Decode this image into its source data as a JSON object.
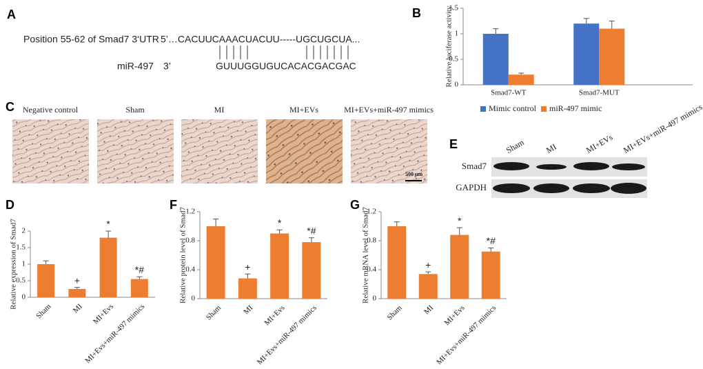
{
  "panel_a": {
    "label": "A",
    "target_label": "Position 55-62 of Smad7 3‘UTR",
    "target_seq": "5’…CACUUCAAACUACUU-----UGCUGCUA...",
    "mirna_label": "miR-497",
    "mirna_end": "3’",
    "mirna_seq": "GUUUGGUGUCACACGACGAC"
  },
  "panel_c": {
    "label": "C",
    "micrographs": [
      "Negative control",
      "Sham",
      "MI",
      "MI+EVs",
      "MI+EVs+miR-497 mimics"
    ],
    "scale_bar": "500 μm"
  },
  "panel_e": {
    "label": "E",
    "lanes": [
      "Sham",
      "MI",
      "MI+EVs",
      "MI+EVs+miR-497 mimics"
    ],
    "rows": [
      "Smad7",
      "GAPDH"
    ]
  },
  "chart_data": [
    {
      "type": "bar",
      "panel": "B",
      "ylabel": "Relative luciferase activity",
      "categories": [
        "Smad7-WT",
        "Smad7-MUT"
      ],
      "series": [
        {
          "name": "Mimic control",
          "color": "#4472c4",
          "values": [
            1.0,
            1.2
          ],
          "errors": [
            0.1,
            0.1
          ]
        },
        {
          "name": "miR-497 mimic",
          "color": "#ed7d31",
          "values": [
            0.2,
            1.1
          ],
          "errors": [
            0.03,
            0.15
          ]
        }
      ],
      "ylim": [
        0,
        1.5
      ],
      "yticks": [
        0,
        0.5,
        1,
        1.5
      ]
    },
    {
      "type": "bar",
      "panel": "D",
      "ylabel": "Relative expression of Smad7",
      "categories": [
        "Sham",
        "MI",
        "MI+Evs",
        "MI+Evs+miR-497 mimics"
      ],
      "values": [
        1.0,
        0.25,
        1.8,
        0.55
      ],
      "errors": [
        0.1,
        0.05,
        0.2,
        0.07
      ],
      "color": "#ed7d31",
      "ylim": [
        0,
        2
      ],
      "yticks": [
        0,
        0.5,
        1,
        1.5,
        2
      ],
      "annotations": [
        {
          "index": 1,
          "text": "+"
        },
        {
          "index": 2,
          "text": "*"
        },
        {
          "index": 3,
          "text": "*#"
        }
      ]
    },
    {
      "type": "bar",
      "panel": "F",
      "ylabel": "Relative protein level of Smad7",
      "categories": [
        "Sham",
        "MI",
        "MI+Evs",
        "MI+Evs+miR-497 mimics"
      ],
      "values": [
        1.0,
        0.28,
        0.9,
        0.78
      ],
      "errors": [
        0.1,
        0.06,
        0.05,
        0.06
      ],
      "color": "#ed7d31",
      "ylim": [
        0,
        1.2
      ],
      "yticks": [
        0,
        0.4,
        0.8,
        1.2
      ],
      "annotations": [
        {
          "index": 1,
          "text": "+"
        },
        {
          "index": 2,
          "text": "*"
        },
        {
          "index": 3,
          "text": "*#"
        }
      ]
    },
    {
      "type": "bar",
      "panel": "G",
      "ylabel": "Relative mRNA level of Smad7",
      "categories": [
        "Sham",
        "MI",
        "MI+Evs",
        "MI+Evs+miR-497 mimics"
      ],
      "values": [
        1.0,
        0.34,
        0.88,
        0.65
      ],
      "errors": [
        0.06,
        0.03,
        0.1,
        0.05
      ],
      "color": "#ed7d31",
      "ylim": [
        0,
        1.2
      ],
      "yticks": [
        0,
        0.4,
        0.8,
        1.2
      ],
      "annotations": [
        {
          "index": 1,
          "text": "+"
        },
        {
          "index": 2,
          "text": "*"
        },
        {
          "index": 3,
          "text": "*#"
        }
      ]
    }
  ]
}
